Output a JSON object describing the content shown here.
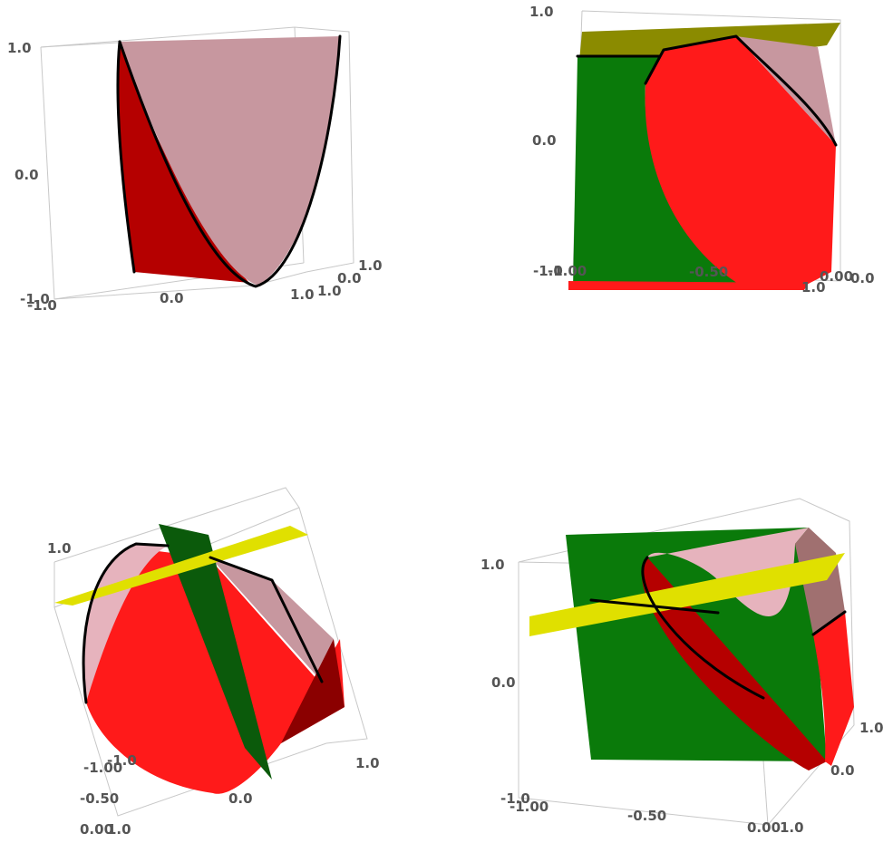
{
  "colors": {
    "pink": "#c7979f",
    "pink_light": "#e6b3bd",
    "red": "#ff1a1a",
    "dark_red": "#b50000",
    "green": "#0a7a0a",
    "dark_green": "#0b5a0b",
    "yellow": "#e0e000",
    "olive": "#8b8b00"
  },
  "panels": [
    {
      "ticks": [
        "1.0",
        "0.0",
        "-1.0",
        "-1.0",
        "0.0",
        "1.0",
        "1.0",
        "0.0",
        "1.0"
      ]
    },
    {
      "ticks": [
        "1.0",
        "0.0",
        "-1.0",
        "-1.00",
        "-0.50",
        "0.00",
        "0.0",
        "1.0"
      ]
    },
    {
      "ticks": [
        "1.0",
        "-1.0",
        "-1.00",
        "-0.50",
        "0.00",
        "1.0",
        "0.0",
        "1.0"
      ]
    },
    {
      "ticks": [
        "1.0",
        "0.0",
        "-1.0",
        "-1.00",
        "-0.50",
        "0.00",
        "1.0",
        "0.0",
        "1.0"
      ]
    }
  ]
}
